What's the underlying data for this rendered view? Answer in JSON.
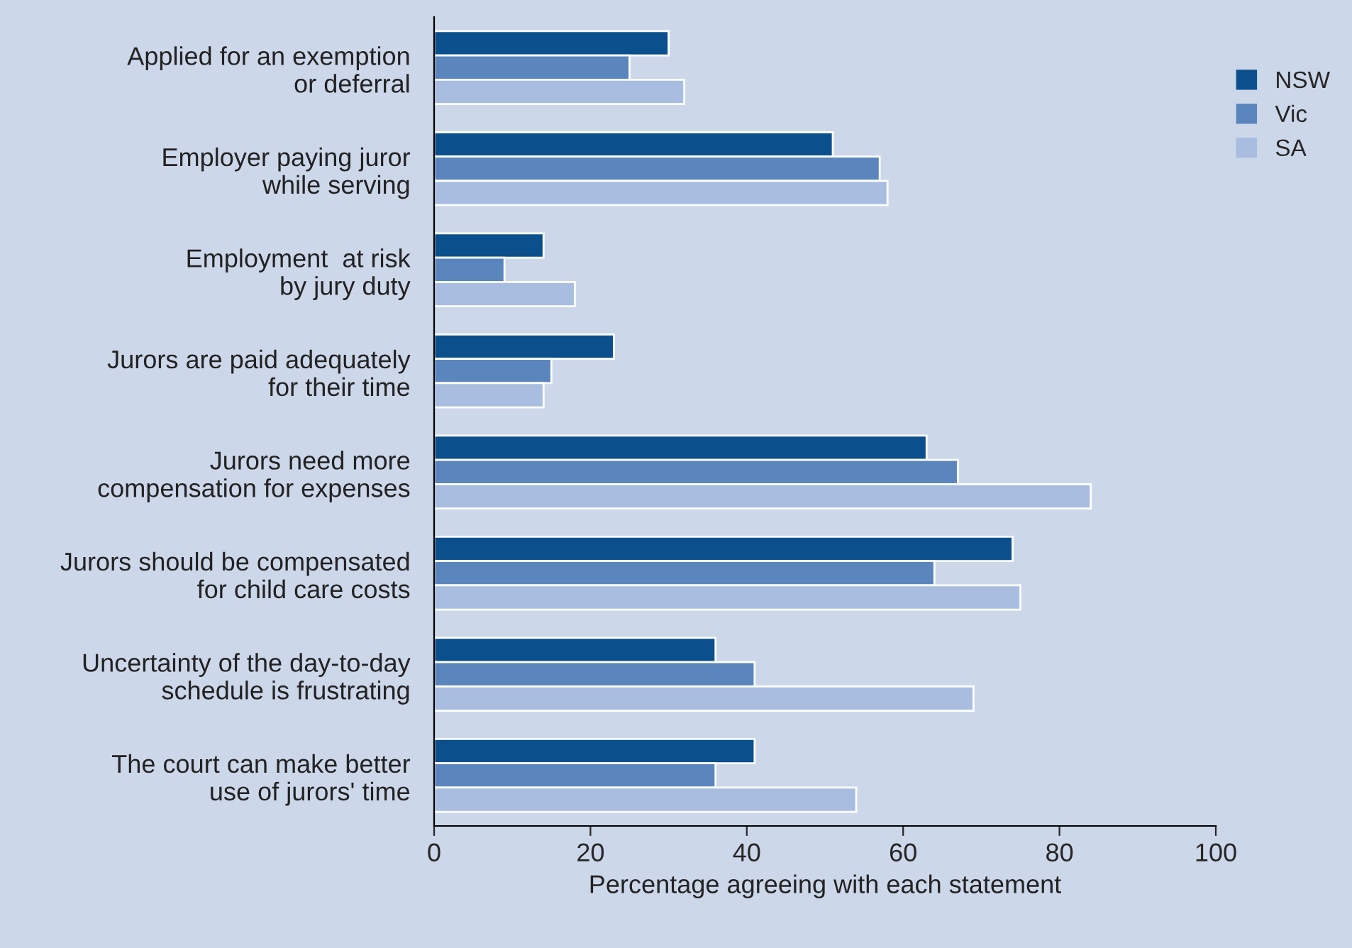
{
  "chart_data": {
    "type": "bar",
    "orientation": "horizontal",
    "xlabel": "Percentage agreeing with each statement",
    "categories": [
      "Applied for an exemption\nor deferral",
      "Employer paying juror\nwhile serving",
      "Employment  at risk\nby jury duty",
      "Jurors are paid adequately\nfor their time",
      "Jurors need more\ncompensation for expenses",
      "Jurors should be compensated\nfor child care costs",
      "Uncertainty of the day-to-day\nschedule is frustrating",
      "The court can make better\nuse of jurors' time"
    ],
    "series": [
      {
        "name": "NSW",
        "color": "#0b4f8c",
        "values": [
          30,
          51,
          14,
          23,
          63,
          74,
          36,
          41
        ]
      },
      {
        "name": "Vic",
        "color": "#5b85bd",
        "values": [
          25,
          57,
          9,
          15,
          67,
          64,
          41,
          36
        ]
      },
      {
        "name": "SA",
        "color": "#a8bde0",
        "values": [
          32,
          58,
          18,
          14,
          84,
          75,
          69,
          54
        ]
      }
    ],
    "xlim": [
      0,
      100
    ],
    "xticks": [
      0,
      20,
      40,
      60,
      80,
      100
    ],
    "grid": false,
    "legend": "top right"
  }
}
